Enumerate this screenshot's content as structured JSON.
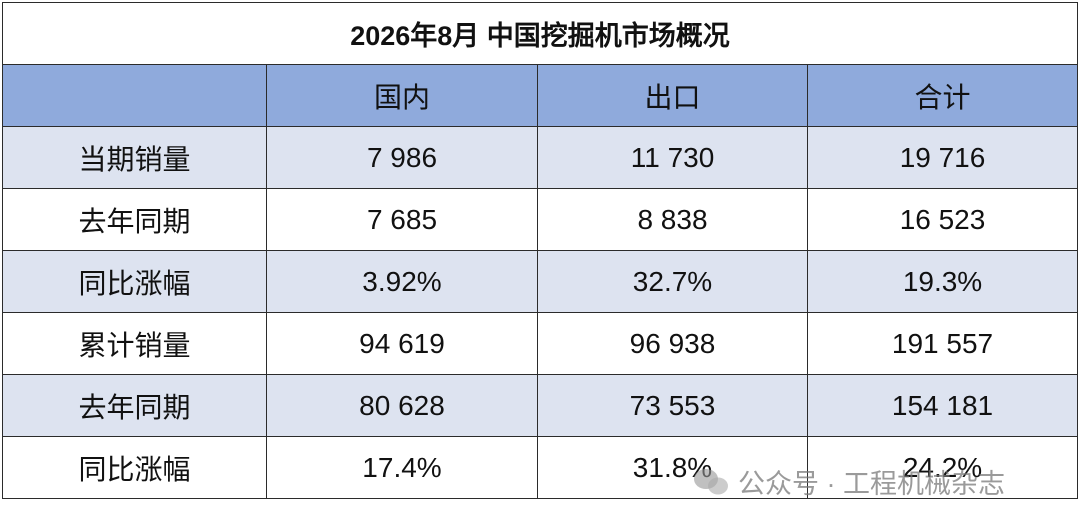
{
  "table": {
    "title": "2026年8月 中国挖掘机市场概况",
    "header": [
      "国内",
      "出口",
      "合计"
    ],
    "rows": [
      [
        "当期销量",
        "7 986",
        "11 730",
        "19 716"
      ],
      [
        "去年同期",
        "7 685",
        "8 838",
        "16 523"
      ],
      [
        "同比涨幅",
        "3.92%",
        "32.7%",
        "19.3%"
      ],
      [
        "累计销量",
        "94 619",
        "96 938",
        "191 557"
      ],
      [
        "去年同期",
        "80 628",
        "73 553",
        "154 181"
      ],
      [
        "同比涨幅",
        "17.4%",
        "31.8%",
        "24.2%"
      ]
    ]
  },
  "watermark": "公众号 · 工程机械杂志"
}
